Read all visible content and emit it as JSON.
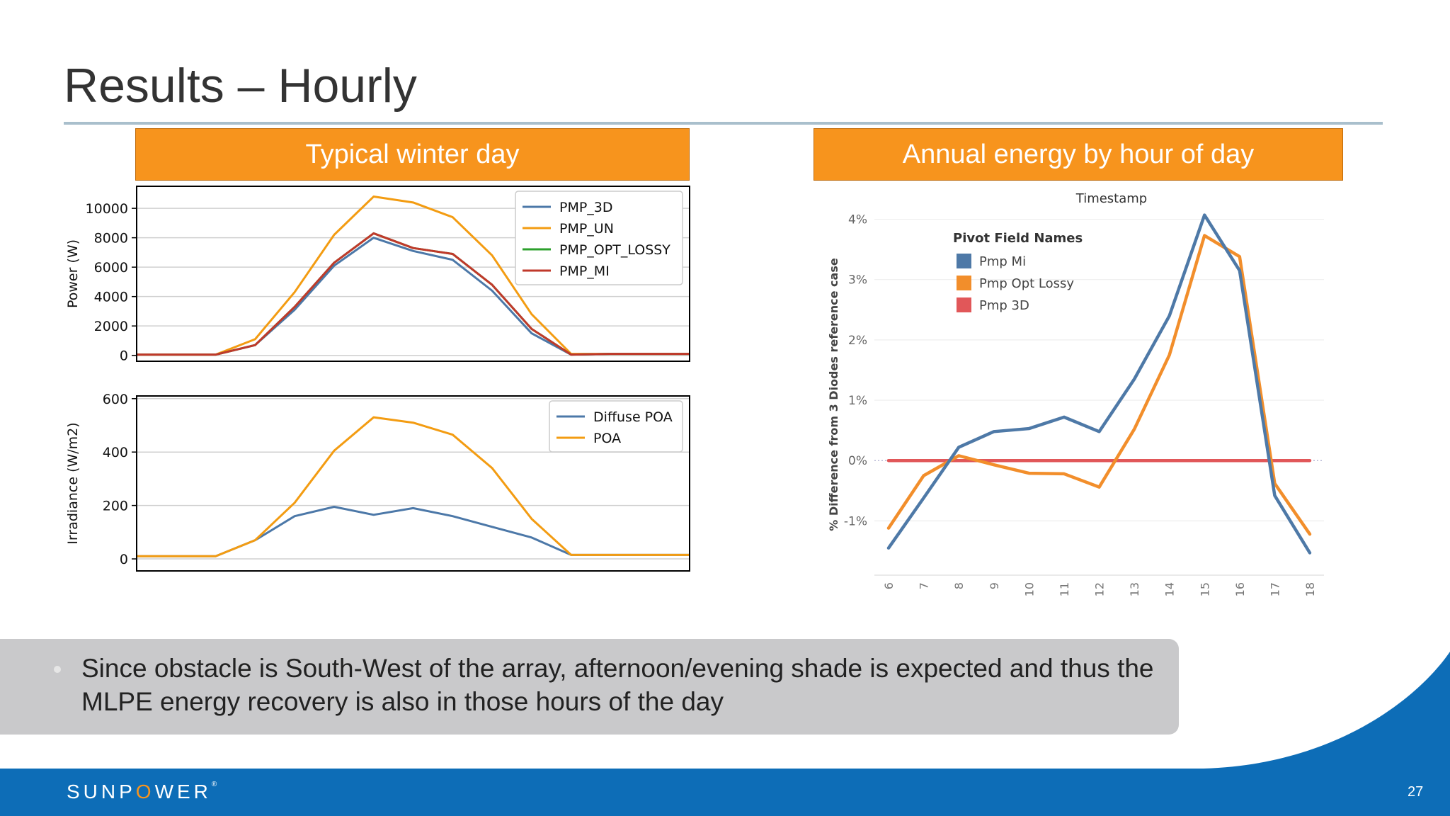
{
  "slide": {
    "title": "Results – Hourly",
    "page_number": "27",
    "logo": {
      "pre": "SUNP",
      "o": "O",
      "post": "WER",
      "mark": "®"
    }
  },
  "banners": {
    "left": "Typical winter day",
    "right": "Annual energy by hour of day"
  },
  "bullet": {
    "text": "Since obstacle is South-West of the array, afternoon/evening shade is expected and thus the MLPE energy recovery is also in those hours of the day"
  },
  "colors": {
    "accent_orange": "#f7941d",
    "footer_blue": "#0d6db7",
    "mpl_blue": "#4c78a8",
    "mpl_orange": "#f39c12",
    "mpl_green": "#2ca02c",
    "mpl_red": "#c0392b",
    "tab_blue": "#4e79a7",
    "tab_orange": "#f28e2b",
    "tab_red": "#e15759"
  },
  "chart_data": [
    {
      "type": "line",
      "xlabel": "",
      "ylabel": "Power (W)",
      "x": [
        0,
        1,
        2,
        3,
        4,
        5,
        6,
        7,
        8,
        9,
        10,
        11,
        12,
        13,
        14
      ],
      "xlim": [
        0,
        14
      ],
      "ylim": [
        -400,
        11500
      ],
      "yticks": [
        0,
        2000,
        4000,
        6000,
        8000,
        10000
      ],
      "ytick_labels": [
        "0",
        "2000",
        "4000",
        "6000",
        "8000",
        "10000"
      ],
      "legend": "top-right",
      "grid": true,
      "series": [
        {
          "name": "PMP_3D",
          "color": "#4c78a8",
          "values": [
            50,
            50,
            50,
            700,
            3100,
            6100,
            8000,
            7100,
            6500,
            4400,
            1500,
            50,
            100,
            100,
            100
          ]
        },
        {
          "name": "PMP_UN",
          "color": "#f39c12",
          "values": [
            50,
            50,
            50,
            1100,
            4300,
            8200,
            10800,
            10400,
            9400,
            6800,
            2800,
            100,
            100,
            100,
            100
          ]
        },
        {
          "name": "PMP_OPT_LOSSY",
          "color": "#2ca02c",
          "values": [
            50,
            50,
            50,
            700,
            3300,
            6300,
            8300,
            7300,
            6900,
            4800,
            1800,
            50,
            100,
            100,
            100
          ]
        },
        {
          "name": "PMP_MI",
          "color": "#c0392b",
          "values": [
            50,
            50,
            50,
            700,
            3300,
            6300,
            8300,
            7300,
            6900,
            4800,
            1800,
            50,
            100,
            100,
            100
          ]
        }
      ]
    },
    {
      "type": "line",
      "xlabel": "",
      "ylabel": "Irradiance (W/m2)",
      "x": [
        0,
        1,
        2,
        3,
        4,
        5,
        6,
        7,
        8,
        9,
        10,
        11,
        12,
        13,
        14
      ],
      "xlim": [
        0,
        14
      ],
      "ylim": [
        -45,
        610
      ],
      "yticks": [
        0,
        200,
        400,
        600
      ],
      "ytick_labels": [
        "0",
        "200",
        "400",
        "600"
      ],
      "legend": "top-right",
      "grid": true,
      "series": [
        {
          "name": "Diffuse POA",
          "color": "#4c78a8",
          "values": [
            10,
            10,
            10,
            70,
            160,
            195,
            165,
            190,
            160,
            120,
            80,
            15,
            15,
            15,
            15
          ]
        },
        {
          "name": "POA",
          "color": "#f39c12",
          "values": [
            10,
            10,
            10,
            70,
            210,
            405,
            530,
            510,
            465,
            340,
            150,
            15,
            15,
            15,
            15
          ]
        }
      ]
    },
    {
      "type": "line",
      "title": "Timestamp",
      "ylabel": "% Difference from 3 Diodes reference case",
      "xlabel": "",
      "x_ticks": [
        "6",
        "7",
        "8",
        "9",
        "10",
        "11",
        "12",
        "13",
        "14",
        "15",
        "16",
        "17",
        "18"
      ],
      "ylim": [
        -1.9,
        4.3
      ],
      "yticks": [
        -1,
        0,
        1,
        2,
        3,
        4
      ],
      "ytick_labels": [
        "-1%",
        "0%",
        "1%",
        "2%",
        "3%",
        "4%"
      ],
      "legend_title": "Pivot Field Names",
      "legend": "top-left",
      "grid": true,
      "series": [
        {
          "name": "Pmp Mi",
          "color": "#4e79a7",
          "values": [
            -1.45,
            -0.62,
            0.22,
            0.48,
            0.53,
            0.72,
            0.48,
            1.35,
            2.4,
            4.07,
            3.15,
            -0.58,
            -1.53
          ]
        },
        {
          "name": "Pmp Opt Lossy",
          "color": "#f28e2b",
          "values": [
            -1.12,
            -0.25,
            0.08,
            -0.07,
            -0.21,
            -0.22,
            -0.44,
            0.52,
            1.75,
            3.73,
            3.38,
            -0.38,
            -1.22
          ]
        },
        {
          "name": "Pmp 3D",
          "color": "#e15759",
          "values": [
            0,
            0,
            0,
            0,
            0,
            0,
            0,
            0,
            0,
            0,
            0,
            0,
            0
          ]
        }
      ]
    }
  ]
}
